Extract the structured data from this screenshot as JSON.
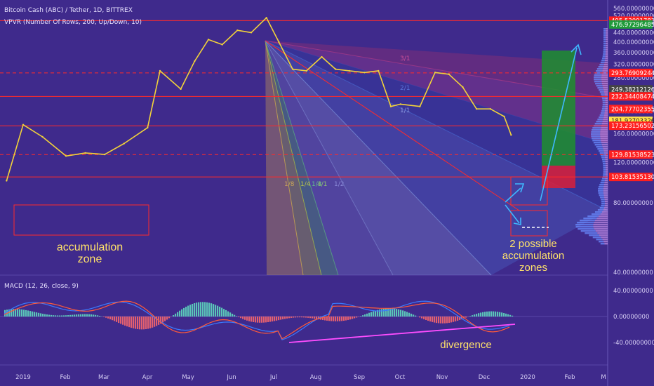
{
  "header": {
    "title": "Bitcoin Cash (ABC) / Tether, 1D, BITTREX",
    "indicator": "VPVR (Number Of Rows, 200, Up/Down, 10)",
    "macd_label": "MACD (12, 26, close, 9)"
  },
  "colors": {
    "background": "#3f2a8c",
    "candle": "#f2d23a",
    "red_line": "#ff2a2a",
    "green_box": "#1f8f2e",
    "red_box": "#d9203a",
    "arrow": "#3fb8ff",
    "divergence": "#ff4dff",
    "macd_line": "#3a7bff",
    "signal_line": "#ff5b3a",
    "hist_pos": "#5fe0c0",
    "hist_neg": "#ff6a6a"
  },
  "chart_data": {
    "type": "line",
    "price_axis": {
      "scale": "log",
      "ticks": [
        "560.00000000",
        "520.00000000",
        "480.00000000",
        "440.00000000",
        "400.00000000",
        "360.00000000",
        "320.00000000",
        "280.00000000",
        "240.00000000",
        "200.00000000",
        "160.00000000",
        "120.00000000",
        "80.00000000",
        "40.00000000"
      ]
    },
    "x_axis": {
      "ticks": [
        "2019",
        "Feb",
        "Mar",
        "Apr",
        "May",
        "Jun",
        "Jul",
        "Aug",
        "Sep",
        "Oct",
        "Nov",
        "Dec",
        "2020",
        "Feb",
        "M"
      ]
    },
    "price_labels": [
      {
        "value": "495.53091783",
        "style": "red"
      },
      {
        "value": "476.97296485",
        "style": "green"
      },
      {
        "value": "293.76909244",
        "style": "red"
      },
      {
        "value": "249.38212126",
        "style": "dark"
      },
      {
        "value": "232.34408474",
        "style": "red"
      },
      {
        "value": "204.77702355",
        "style": "red"
      },
      {
        "value": "181.92703326",
        "style": "yellow"
      },
      {
        "value": "173.23156502",
        "style": "red"
      },
      {
        "value": "129.81538523",
        "style": "red"
      },
      {
        "value": "103.81535130",
        "style": "red"
      }
    ],
    "series": [
      {
        "x": [
          "2018-12-20",
          "2019-01-01",
          "2019-01-15",
          "2019-02-01",
          "2019-02-15",
          "2019-03-01",
          "2019-03-15",
          "2019-04-01",
          "2019-04-10",
          "2019-04-25",
          "2019-05-05",
          "2019-05-15",
          "2019-05-25",
          "2019-06-05",
          "2019-06-15",
          "2019-06-26",
          "2019-07-05",
          "2019-07-15",
          "2019-07-25",
          "2019-08-05",
          "2019-08-15",
          "2019-08-25",
          "2019-09-05",
          "2019-09-15",
          "2019-09-24",
          "2019-10-01",
          "2019-10-15",
          "2019-10-26",
          "2019-11-05",
          "2019-11-15",
          "2019-11-25",
          "2019-12-05",
          "2019-12-15",
          "2019-12-20"
        ],
        "values": [
          100,
          175,
          155,
          128,
          132,
          130,
          145,
          170,
          300,
          250,
          330,
          410,
          390,
          450,
          440,
          510,
          400,
          305,
          300,
          345,
          305,
          300,
          295,
          300,
          210,
          215,
          210,
          295,
          290,
          255,
          205,
          205,
          190,
          158
        ]
      }
    ],
    "levels": [
      {
        "value": 495.5,
        "style": "solid"
      },
      {
        "value": 293.8,
        "style": "dashed"
      },
      {
        "value": 232.3,
        "style": "solid"
      },
      {
        "value": 173.2,
        "style": "solid"
      },
      {
        "value": 129.8,
        "style": "dashed"
      },
      {
        "value": 103.8,
        "style": "solid"
      }
    ],
    "fan_labels": [
      "1/8",
      "1/4",
      "1/3",
      "1/2",
      "1/1",
      "2/1",
      "3/1",
      "4/1"
    ],
    "macd": {
      "axis_ticks": [
        "40.00000000",
        "0.00000000",
        "-40.00000000"
      ]
    },
    "annotations": {
      "accumulation_line1": "accumulation",
      "accumulation_line2": "zone",
      "possible_line1": "2 possible",
      "possible_line2": "accumulation",
      "possible_line3": "zones",
      "divergence": "divergence"
    }
  }
}
